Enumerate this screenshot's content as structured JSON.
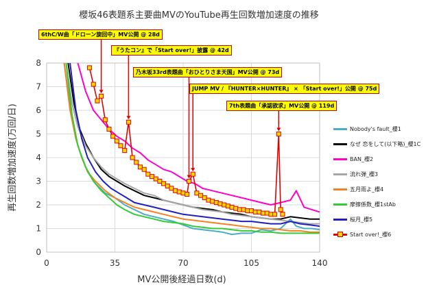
{
  "chart_data": {
    "type": "line",
    "title": "櫻坂46表題系主要曲MVのYouTube再生回数増加速度の推移",
    "xlabel": "MV公開後経過日数(d)",
    "ylabel": "再生回数増加速度(万回/日)",
    "xlim": [
      0,
      140
    ],
    "ylim": [
      0,
      8
    ],
    "xticks": [
      "0",
      "35",
      "70",
      "105",
      "140"
    ],
    "yticks": [
      "0",
      "1",
      "2",
      "3",
      "4",
      "5",
      "6",
      "7",
      "8"
    ],
    "grid": true,
    "legend_position": "right",
    "series": [
      {
        "name": "Nobody's fault_櫻1",
        "color": "#4bacc6",
        "points": [
          [
            9,
            8
          ],
          [
            12,
            6.2
          ],
          [
            15,
            4.8
          ],
          [
            18,
            4.0
          ],
          [
            21,
            3.4
          ],
          [
            25,
            2.9
          ],
          [
            30,
            2.5
          ],
          [
            35,
            2.3
          ],
          [
            40,
            2.0
          ],
          [
            45,
            1.8
          ],
          [
            50,
            1.6
          ],
          [
            55,
            1.5
          ],
          [
            60,
            1.4
          ],
          [
            65,
            1.3
          ],
          [
            70,
            1.15
          ],
          [
            75,
            1.0
          ],
          [
            80,
            0.95
          ],
          [
            85,
            0.9
          ],
          [
            90,
            0.85
          ],
          [
            95,
            0.75
          ],
          [
            100,
            0.8
          ],
          [
            105,
            0.8
          ],
          [
            110,
            0.95
          ],
          [
            115,
            0.9
          ],
          [
            120,
            1.0
          ],
          [
            125,
            1.4
          ],
          [
            128,
            1.1
          ],
          [
            132,
            1.0
          ],
          [
            136,
            1.0
          ],
          [
            140,
            0.95
          ]
        ]
      },
      {
        "name": "なぜ 恋をして(以下略)_櫻1C",
        "color": "#000000",
        "points": [
          [
            11,
            8
          ],
          [
            14,
            6.3
          ],
          [
            17,
            5.2
          ],
          [
            20,
            4.6
          ],
          [
            24,
            4.0
          ],
          [
            28,
            3.5
          ],
          [
            32,
            3.2
          ],
          [
            36,
            3.0
          ],
          [
            40,
            2.8
          ],
          [
            45,
            2.6
          ],
          [
            50,
            2.4
          ],
          [
            55,
            2.3
          ],
          [
            60,
            2.2
          ],
          [
            65,
            2.1
          ],
          [
            70,
            2.0
          ],
          [
            75,
            1.9
          ],
          [
            80,
            1.85
          ],
          [
            85,
            1.8
          ],
          [
            90,
            1.7
          ],
          [
            95,
            1.65
          ],
          [
            100,
            1.6
          ],
          [
            105,
            1.5
          ],
          [
            110,
            1.45
          ],
          [
            115,
            1.4
          ],
          [
            120,
            1.4
          ],
          [
            125,
            1.5
          ],
          [
            130,
            1.45
          ],
          [
            135,
            1.4
          ],
          [
            140,
            1.4
          ]
        ]
      },
      {
        "name": "BAN_櫻2",
        "color": "#ff00cc",
        "points": [
          [
            16,
            8
          ],
          [
            20,
            6.8
          ],
          [
            24,
            6.0
          ],
          [
            28,
            5.6
          ],
          [
            32,
            5.2
          ],
          [
            36,
            4.9
          ],
          [
            40,
            4.7
          ],
          [
            44,
            4.4
          ],
          [
            48,
            4.2
          ],
          [
            52,
            3.9
          ],
          [
            56,
            3.7
          ],
          [
            60,
            3.5
          ],
          [
            64,
            3.4
          ],
          [
            68,
            3.2
          ],
          [
            72,
            3.0
          ],
          [
            76,
            2.9
          ],
          [
            80,
            2.7
          ],
          [
            85,
            2.6
          ],
          [
            90,
            2.5
          ],
          [
            95,
            2.4
          ],
          [
            100,
            2.3
          ],
          [
            105,
            2.2
          ],
          [
            110,
            2.1
          ],
          [
            115,
            2.0
          ],
          [
            120,
            2.1
          ],
          [
            125,
            2.2
          ],
          [
            128,
            2.6
          ],
          [
            132,
            1.9
          ],
          [
            136,
            1.8
          ],
          [
            140,
            1.7
          ]
        ]
      },
      {
        "name": "流れ弾_櫻3",
        "color": "#a6a6a6",
        "points": [
          [
            10,
            8
          ],
          [
            13,
            6.3
          ],
          [
            16,
            5.3
          ],
          [
            20,
            4.5
          ],
          [
            24,
            4.0
          ],
          [
            28,
            3.6
          ],
          [
            32,
            3.3
          ],
          [
            36,
            3.1
          ],
          [
            40,
            2.9
          ],
          [
            45,
            2.7
          ],
          [
            50,
            2.5
          ],
          [
            55,
            2.4
          ],
          [
            60,
            2.2
          ],
          [
            65,
            2.1
          ],
          [
            70,
            2.0
          ],
          [
            75,
            1.9
          ],
          [
            80,
            1.8
          ],
          [
            85,
            1.75
          ],
          [
            90,
            1.7
          ],
          [
            95,
            1.6
          ],
          [
            100,
            1.55
          ],
          [
            105,
            1.5
          ],
          [
            110,
            1.45
          ],
          [
            115,
            1.4
          ],
          [
            120,
            1.35
          ],
          [
            125,
            1.3
          ],
          [
            130,
            1.25
          ],
          [
            135,
            1.2
          ],
          [
            140,
            1.2
          ]
        ]
      },
      {
        "name": "五月雨よ_櫻4",
        "color": "#f58220",
        "points": [
          [
            9,
            8
          ],
          [
            12,
            6.0
          ],
          [
            15,
            4.8
          ],
          [
            18,
            4.0
          ],
          [
            21,
            3.4
          ],
          [
            25,
            3.0
          ],
          [
            30,
            2.6
          ],
          [
            35,
            2.3
          ],
          [
            40,
            2.1
          ],
          [
            45,
            1.9
          ],
          [
            50,
            1.8
          ],
          [
            55,
            1.7
          ],
          [
            60,
            1.6
          ],
          [
            65,
            1.5
          ],
          [
            70,
            1.4
          ],
          [
            75,
            1.35
          ],
          [
            80,
            1.3
          ],
          [
            85,
            1.25
          ],
          [
            90,
            1.2
          ],
          [
            95,
            1.15
          ],
          [
            100,
            1.1
          ],
          [
            105,
            1.05
          ],
          [
            110,
            1.0
          ],
          [
            115,
            1.0
          ],
          [
            120,
            0.95
          ],
          [
            125,
            0.9
          ],
          [
            130,
            0.9
          ],
          [
            135,
            0.85
          ],
          [
            140,
            0.85
          ]
        ]
      },
      {
        "name": "摩擦係数_櫻1stAb",
        "color": "#33cc33",
        "points": [
          [
            10,
            8
          ],
          [
            13,
            5.8
          ],
          [
            16,
            4.5
          ],
          [
            20,
            3.6
          ],
          [
            24,
            3.0
          ],
          [
            28,
            2.6
          ],
          [
            32,
            2.3
          ],
          [
            36,
            2.0
          ],
          [
            40,
            1.8
          ],
          [
            45,
            1.6
          ],
          [
            50,
            1.5
          ],
          [
            55,
            1.4
          ],
          [
            60,
            1.3
          ],
          [
            65,
            1.25
          ],
          [
            70,
            1.2
          ],
          [
            75,
            1.1
          ],
          [
            80,
            1.05
          ],
          [
            85,
            1.0
          ],
          [
            90,
            1.0
          ],
          [
            95,
            0.95
          ],
          [
            100,
            0.9
          ],
          [
            105,
            0.9
          ],
          [
            110,
            0.85
          ],
          [
            115,
            0.85
          ],
          [
            120,
            0.8
          ],
          [
            125,
            0.8
          ],
          [
            130,
            0.8
          ],
          [
            135,
            0.8
          ],
          [
            140,
            0.8
          ]
        ]
      },
      {
        "name": "桜月_櫻5",
        "color": "#1f1fbf",
        "points": [
          [
            12,
            8
          ],
          [
            15,
            6.0
          ],
          [
            18,
            4.8
          ],
          [
            21,
            4.0
          ],
          [
            25,
            3.4
          ],
          [
            29,
            3.0
          ],
          [
            33,
            2.7
          ],
          [
            37,
            2.5
          ],
          [
            41,
            2.3
          ],
          [
            45,
            2.1
          ],
          [
            50,
            2.0
          ],
          [
            55,
            1.9
          ],
          [
            60,
            1.8
          ],
          [
            65,
            1.7
          ],
          [
            70,
            1.6
          ],
          [
            75,
            1.55
          ],
          [
            80,
            1.5
          ],
          [
            85,
            1.45
          ],
          [
            90,
            1.4
          ],
          [
            95,
            1.35
          ],
          [
            100,
            1.3
          ],
          [
            105,
            1.3
          ],
          [
            110,
            1.25
          ],
          [
            115,
            1.2
          ],
          [
            120,
            1.2
          ],
          [
            125,
            1.3
          ],
          [
            130,
            1.2
          ],
          [
            135,
            1.15
          ],
          [
            140,
            1.1
          ]
        ]
      },
      {
        "name": "Start over!_櫻6",
        "color": "#e00000",
        "marker": "square",
        "marker_color": "#ffd700",
        "points": [
          [
            22,
            7.8
          ],
          [
            24,
            7.1
          ],
          [
            26,
            6.4
          ],
          [
            28,
            6.6
          ],
          [
            30,
            5.6
          ],
          [
            32,
            5.2
          ],
          [
            34,
            4.9
          ],
          [
            36,
            4.7
          ],
          [
            38,
            4.5
          ],
          [
            40,
            4.3
          ],
          [
            42,
            5.5
          ],
          [
            44,
            4.0
          ],
          [
            46,
            3.8
          ],
          [
            48,
            3.6
          ],
          [
            50,
            3.5
          ],
          [
            52,
            3.3
          ],
          [
            54,
            3.2
          ],
          [
            56,
            3.1
          ],
          [
            58,
            3.0
          ],
          [
            60,
            2.9
          ],
          [
            62,
            2.8
          ],
          [
            64,
            2.7
          ],
          [
            66,
            2.6
          ],
          [
            68,
            2.55
          ],
          [
            70,
            2.5
          ],
          [
            72,
            2.45
          ],
          [
            73,
            3.0
          ],
          [
            75,
            3.3
          ],
          [
            77,
            2.5
          ],
          [
            79,
            2.4
          ],
          [
            81,
            2.3
          ],
          [
            83,
            2.2
          ],
          [
            85,
            2.15
          ],
          [
            87,
            2.1
          ],
          [
            89,
            2.05
          ],
          [
            91,
            2.0
          ],
          [
            93,
            1.95
          ],
          [
            95,
            1.9
          ],
          [
            97,
            1.85
          ],
          [
            99,
            1.8
          ],
          [
            101,
            1.8
          ],
          [
            103,
            1.75
          ],
          [
            105,
            1.75
          ],
          [
            107,
            1.7
          ],
          [
            109,
            1.7
          ],
          [
            111,
            1.65
          ],
          [
            113,
            1.65
          ],
          [
            115,
            1.6
          ],
          [
            117,
            1.6
          ],
          [
            119,
            5.0
          ],
          [
            120,
            1.8
          ],
          [
            121,
            1.6
          ]
        ]
      }
    ],
    "annotations": [
      {
        "text": "6thC/W曲「ドローン旋回中」MV公開 @ 28d",
        "x": 28
      },
      {
        "text": "『うたコン』で「Start over!」披露 @ 42d",
        "x": 42
      },
      {
        "text": "乃木坂33rd表題曲「おひとりさま天国」MV公開 @ 73d",
        "x": 73
      },
      {
        "text": "JUMP MV / 『HUNTER×HUNTER』 × 「Start over!」公開 @ 75d",
        "x": 75
      },
      {
        "text": "7th表題曲「承認欲求」MV公開 @ 119d",
        "x": 119
      }
    ]
  }
}
